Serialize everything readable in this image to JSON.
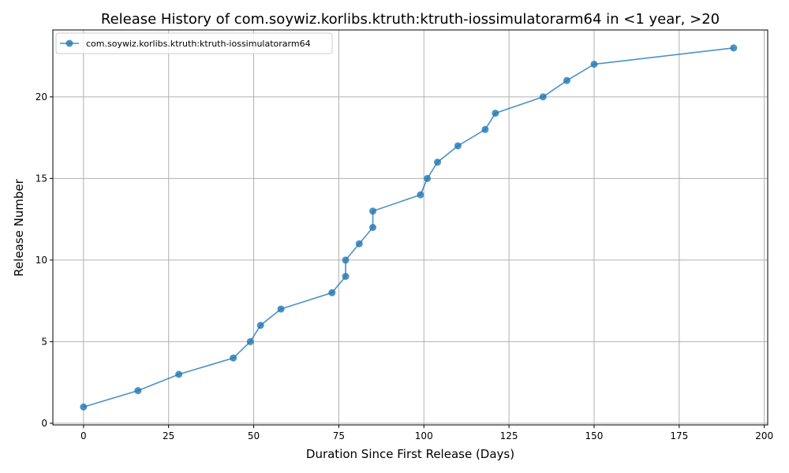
{
  "chart_data": {
    "type": "line",
    "title": "Release History of com.soywiz.korlibs.ktruth:ktruth-iossimulatorarm64 in <1 year, >20",
    "xlabel": "Duration Since First Release (Days)",
    "ylabel": "Release Number",
    "xlim": [
      -9,
      201
    ],
    "ylim": [
      -0.1,
      24.1
    ],
    "xticks": [
      0,
      25,
      50,
      75,
      100,
      125,
      150,
      175,
      200
    ],
    "yticks": [
      0,
      5,
      10,
      15,
      20
    ],
    "grid": true,
    "legend_position": "top-left",
    "series": [
      {
        "name": "com.soywiz.korlibs.ktruth:ktruth-iossimulatorarm64",
        "color": "#1f77b4",
        "x": [
          0,
          16,
          28,
          44,
          49,
          52,
          58,
          73,
          77,
          77,
          81,
          85,
          85,
          99,
          101,
          104,
          110,
          118,
          121,
          135,
          142,
          150,
          191
        ],
        "y": [
          1,
          2,
          3,
          4,
          5,
          6,
          7,
          8,
          9,
          10,
          11,
          12,
          13,
          14,
          15,
          16,
          17,
          18,
          19,
          20,
          21,
          22,
          23
        ]
      }
    ]
  }
}
